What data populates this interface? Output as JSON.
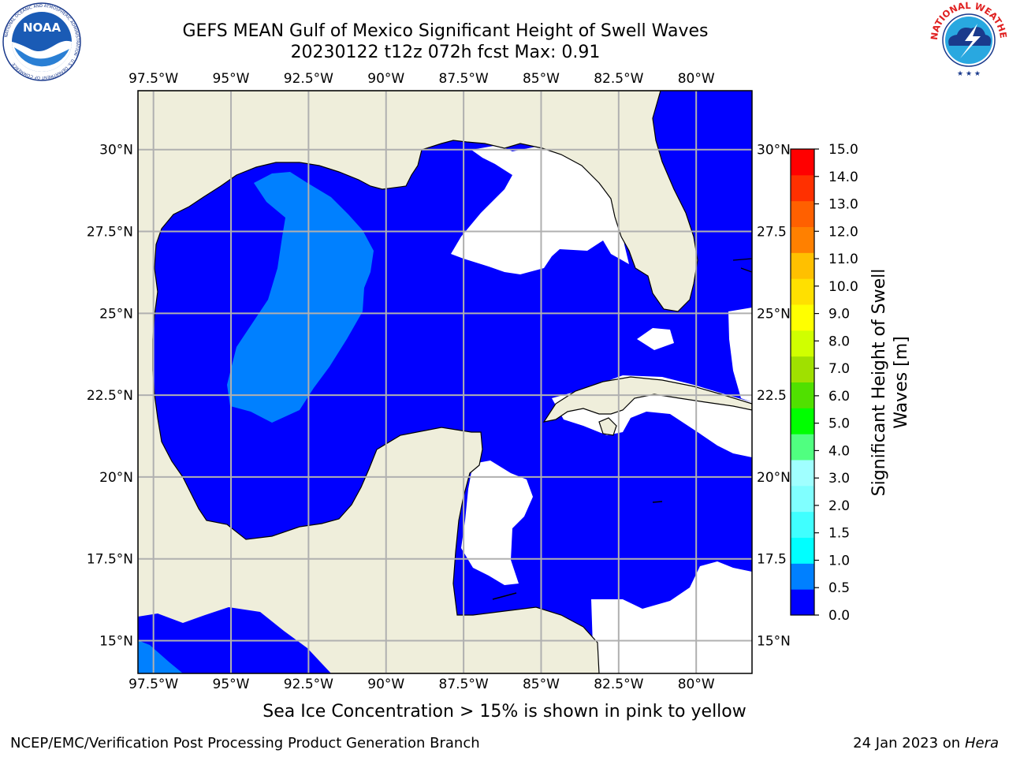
{
  "header": {
    "title_line1": "GEFS MEAN Gulf of Mexico Significant Height of Swell Waves",
    "title_line2": "20230122 t12z 072h fcst   Max: 0.91"
  },
  "map": {
    "lon_labels": [
      "97.5°W",
      "95°W",
      "92.5°W",
      "90°W",
      "87.5°W",
      "85°W",
      "82.5°W",
      "80°W"
    ],
    "lon_values": [
      -97.5,
      -95,
      -92.5,
      -90,
      -87.5,
      -85,
      -82.5,
      -80
    ],
    "lat_labels": [
      "30°N",
      "27.5°N",
      "25°N",
      "22.5°N",
      "20°N",
      "17.5°N",
      "15°N"
    ],
    "lat_values": [
      30,
      27.5,
      25,
      22.5,
      20,
      17.5,
      15
    ],
    "right_lat_labels": [
      "30°N",
      "27.5",
      "25°N",
      "22.5",
      "20°N",
      "17.5",
      "15°N"
    ],
    "lon_range": [
      -98,
      -78.2
    ],
    "lat_range": [
      14,
      31.8
    ],
    "colors": {
      "land": "#efeedb",
      "water_low": "#0000ff",
      "water_mid": "#0080ff",
      "no_data": "#ffffff",
      "grid": "#b0b0b0"
    }
  },
  "colorbar": {
    "label_line1": "Significant Height of Swell",
    "label_line2": "Waves [m]",
    "ticks": [
      "0.0",
      "0.5",
      "1.0",
      "1.5",
      "2.0",
      "3.0",
      "4.0",
      "5.0",
      "6.0",
      "7.0",
      "8.0",
      "9.0",
      "10.0",
      "11.0",
      "12.0",
      "13.0",
      "14.0",
      "15.0"
    ],
    "colors": [
      "#0000ff",
      "#0080ff",
      "#00ffff",
      "#40ffff",
      "#80ffff",
      "#a0ffff",
      "#50ff80",
      "#00ff00",
      "#50e000",
      "#a0e000",
      "#d0ff00",
      "#ffff00",
      "#ffe000",
      "#ffc000",
      "#ff8000",
      "#ff6000",
      "#ff3000",
      "#ff0000"
    ]
  },
  "note": "Sea Ice Concentration > 15% is shown in pink to yellow",
  "footer": {
    "left": "NCEP/EMC/Verification Post Processing Product Generation Branch",
    "right_date": "24 Jan 2023 on",
    "right_machine": "Hera"
  },
  "logos": {
    "noaa_text": "NOAA",
    "noaa_ring": "NATIONAL OCEANIC AND ATMOSPHERIC ADMINISTRATION · U.S. DEPARTMENT OF COMMERCE",
    "nws_ring": "NATIONAL WEATHER SERVICE"
  }
}
